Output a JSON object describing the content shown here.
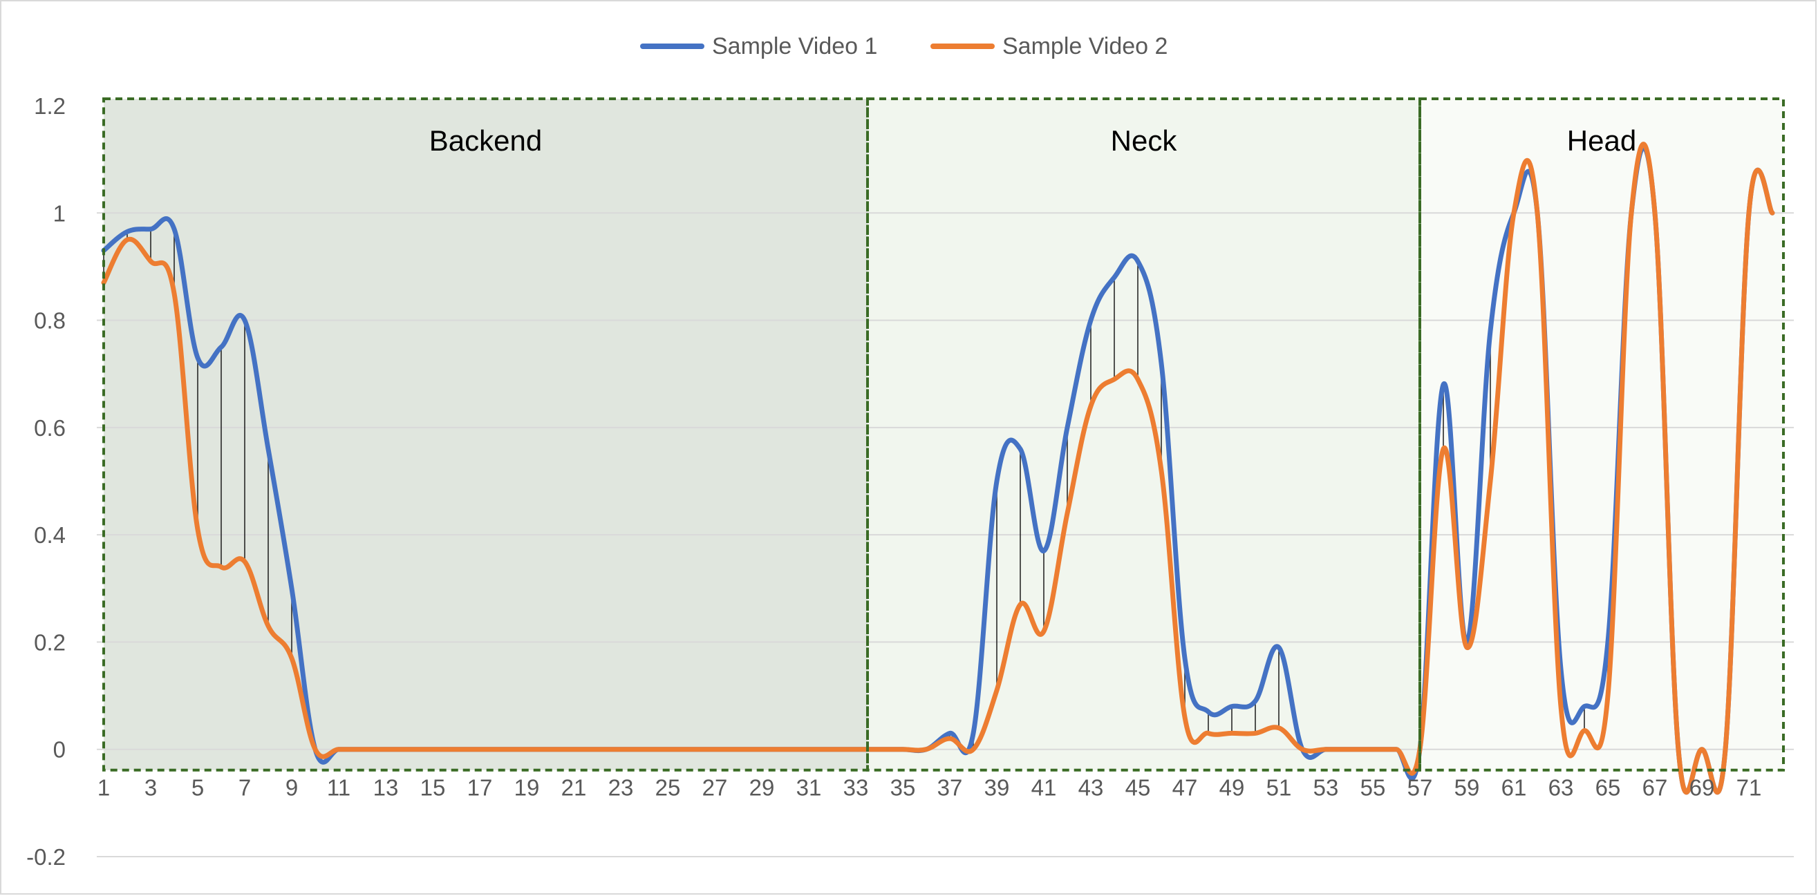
{
  "chart_data": {
    "type": "line",
    "title": "",
    "xlabel": "",
    "ylabel": "",
    "ylim": [
      -0.2,
      1.2
    ],
    "yticks": [
      -0.2,
      0,
      0.2,
      0.4,
      0.6,
      0.8,
      1,
      1.2
    ],
    "ytick_labels": [
      "-0.2",
      "0",
      "0.2",
      "0.4",
      "0.6",
      "0.8",
      "1",
      "1.2"
    ],
    "xlim": [
      1,
      72
    ],
    "xtick_labels": [
      "1",
      "3",
      "5",
      "7",
      "9",
      "11",
      "13",
      "15",
      "17",
      "19",
      "21",
      "23",
      "25",
      "27",
      "29",
      "31",
      "33",
      "35",
      "37",
      "39",
      "41",
      "43",
      "45",
      "47",
      "49",
      "51",
      "53",
      "55",
      "57",
      "59",
      "61",
      "63",
      "65",
      "67",
      "69",
      "71"
    ],
    "grid": true,
    "legend_position": "top-center",
    "series": [
      {
        "name": "Sample Video 1",
        "color": "#4472C4",
        "x": [
          1,
          2,
          3,
          4,
          5,
          6,
          7,
          8,
          9,
          10,
          11,
          12,
          13,
          14,
          15,
          16,
          17,
          18,
          19,
          20,
          21,
          22,
          23,
          24,
          25,
          26,
          27,
          28,
          29,
          30,
          31,
          32,
          33,
          34,
          35,
          36,
          37,
          38,
          39,
          40,
          41,
          42,
          43,
          44,
          45,
          46,
          47,
          48,
          49,
          50,
          51,
          52,
          53,
          54,
          55,
          56,
          57,
          58,
          59,
          60,
          61,
          62,
          63,
          64,
          65,
          66,
          67,
          68,
          69,
          70,
          71,
          72
        ],
        "values": [
          0.93,
          0.965,
          0.97,
          0.97,
          0.73,
          0.75,
          0.8,
          0.56,
          0.3,
          0,
          0,
          0,
          0,
          0,
          0,
          0,
          0,
          0,
          0,
          0,
          0,
          0,
          0,
          0,
          0,
          0,
          0,
          0,
          0,
          0,
          0,
          0,
          0,
          0,
          0,
          0,
          0.03,
          0.03,
          0.5,
          0.56,
          0.37,
          0.6,
          0.8,
          0.88,
          0.91,
          0.72,
          0.17,
          0.07,
          0.08,
          0.09,
          0.19,
          0,
          0,
          0,
          0,
          0,
          0,
          0.68,
          0.2,
          0.78,
          1.0,
          1.0,
          0.15,
          0.08,
          0.2,
          1.0,
          1.0,
          0,
          0,
          0,
          1.0,
          1.0
        ]
      },
      {
        "name": "Sample Video 2",
        "color": "#ED7D31",
        "x": [
          1,
          2,
          3,
          4,
          5,
          6,
          7,
          8,
          9,
          10,
          11,
          12,
          13,
          14,
          15,
          16,
          17,
          18,
          19,
          20,
          21,
          22,
          23,
          24,
          25,
          26,
          27,
          28,
          29,
          30,
          31,
          32,
          33,
          34,
          35,
          36,
          37,
          38,
          39,
          40,
          41,
          42,
          43,
          44,
          45,
          46,
          47,
          48,
          49,
          50,
          51,
          52,
          53,
          54,
          55,
          56,
          57,
          58,
          59,
          60,
          61,
          62,
          63,
          64,
          65,
          66,
          67,
          68,
          69,
          70,
          71,
          72
        ],
        "values": [
          0.87,
          0.95,
          0.91,
          0.85,
          0.41,
          0.34,
          0.35,
          0.23,
          0.17,
          0,
          0,
          0,
          0,
          0,
          0,
          0,
          0,
          0,
          0,
          0,
          0,
          0,
          0,
          0,
          0,
          0,
          0,
          0,
          0,
          0,
          0,
          0,
          0,
          0,
          0,
          0,
          0.02,
          0,
          0.11,
          0.27,
          0.22,
          0.44,
          0.64,
          0.69,
          0.69,
          0.52,
          0.06,
          0.03,
          0.03,
          0.03,
          0.04,
          0,
          0,
          0,
          0,
          0,
          0,
          0.56,
          0.19,
          0.5,
          1.0,
          1.0,
          0.08,
          0.035,
          0.1,
          1.0,
          1.0,
          0,
          0,
          0,
          1.0,
          1.0
        ]
      }
    ],
    "regions": [
      {
        "label": "Backend",
        "x_start": 1,
        "x_end": 33.5,
        "fill": "#E0E6DE"
      },
      {
        "label": "Neck",
        "x_start": 33.5,
        "x_end": 57,
        "fill": "#F1F6EE"
      },
      {
        "label": "Head",
        "x_start": 57,
        "x_end": 72.5,
        "fill": "#F9FBF7"
      }
    ],
    "region_border_color": "#3A6B25",
    "drop_lines": true
  }
}
